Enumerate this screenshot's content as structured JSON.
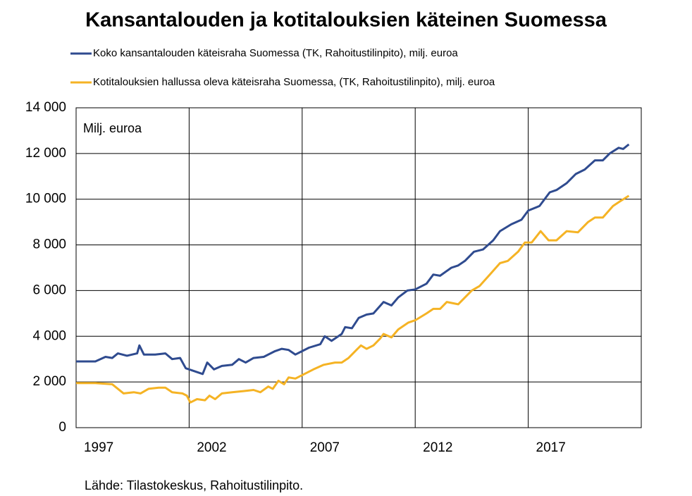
{
  "chart_data": {
    "type": "line",
    "title": "Kansantalouden ja kotitalouksien käteinen Suomessa",
    "annotation": "Milj. euroa",
    "source": "Lähde: Tilastokeskus, Rahoitustilinpito.",
    "xlim": [
      1996,
      2021
    ],
    "xticks": [
      1997,
      2002,
      2007,
      2012,
      2017
    ],
    "xgrid": [
      2001,
      2006,
      2011,
      2016
    ],
    "ylim": [
      0,
      14000
    ],
    "yticks": [
      0,
      {
        "value": 2000,
        "label": "2 000"
      },
      {
        "value": 4000,
        "label": "4 000"
      },
      {
        "value": 6000,
        "label": "6 000"
      },
      {
        "value": 8000,
        "label": "8 000"
      },
      {
        "value": 10000,
        "label": "10 000"
      },
      {
        "value": 12000,
        "label": "12 000"
      },
      {
        "value": 14000,
        "label": "14 000"
      }
    ],
    "grid": true,
    "series": [
      {
        "name": "Koko kansantalouden käteisraha Suomessa (TK, Rahoitustilinpito), milj. euroa",
        "color": "#2f4b8f",
        "x": [
          1996.0,
          1996.85,
          1997.3,
          1997.6,
          1997.85,
          1998.25,
          1998.7,
          1998.8,
          1999.0,
          1999.5,
          1999.95,
          2000.25,
          2000.6,
          2000.85,
          2001.0,
          2001.6,
          2001.8,
          2002.1,
          2002.45,
          2002.9,
          2003.2,
          2003.5,
          2003.85,
          2004.3,
          2004.8,
          2005.1,
          2005.4,
          2005.7,
          2006.0,
          2006.3,
          2006.8,
          2007.0,
          2007.3,
          2007.75,
          2007.9,
          2008.2,
          2008.5,
          2008.85,
          2009.15,
          2009.6,
          2009.95,
          2010.25,
          2010.65,
          2011.0,
          2011.5,
          2011.8,
          2012.1,
          2012.6,
          2012.9,
          2013.2,
          2013.6,
          2014.0,
          2014.45,
          2014.75,
          2015.25,
          2015.7,
          2016.0,
          2016.5,
          2016.95,
          2017.25,
          2017.7,
          2018.1,
          2018.5,
          2018.95,
          2019.3,
          2019.6,
          2020.0,
          2020.2,
          2020.45
        ],
        "values": [
          2900,
          2900,
          3100,
          3050,
          3250,
          3150,
          3250,
          3600,
          3200,
          3200,
          3250,
          3000,
          3050,
          2600,
          2550,
          2350,
          2850,
          2550,
          2700,
          2750,
          3000,
          2850,
          3050,
          3100,
          3350,
          3450,
          3400,
          3200,
          3350,
          3500,
          3650,
          4000,
          3800,
          4100,
          4400,
          4350,
          4800,
          4950,
          5000,
          5500,
          5350,
          5700,
          6000,
          6050,
          6300,
          6700,
          6650,
          7000,
          7100,
          7300,
          7700,
          7800,
          8200,
          8600,
          8900,
          9100,
          9500,
          9700,
          10300,
          10400,
          10700,
          11100,
          11300,
          11700,
          11700,
          12000,
          12250,
          12200,
          12400
        ]
      },
      {
        "name": "Kotitalouksien hallussa oleva käteisraha Suomessa, (TK, Rahoitustilinpito), milj. euroa",
        "color": "#f5b324",
        "x": [
          1996.0,
          1996.85,
          1997.6,
          1998.1,
          1998.55,
          1998.85,
          1999.2,
          1999.65,
          1999.95,
          2000.25,
          2000.7,
          2000.9,
          2001.05,
          2001.35,
          2001.7,
          2001.9,
          2002.15,
          2002.45,
          2002.9,
          2003.4,
          2003.85,
          2004.15,
          2004.5,
          2004.7,
          2004.95,
          2005.2,
          2005.4,
          2005.7,
          2006.0,
          2006.5,
          2006.95,
          2007.45,
          2007.75,
          2008.05,
          2008.4,
          2008.6,
          2008.85,
          2009.15,
          2009.45,
          2009.6,
          2009.95,
          2010.25,
          2010.7,
          2011.0,
          2011.5,
          2011.8,
          2012.1,
          2012.4,
          2012.9,
          2013.2,
          2013.5,
          2013.85,
          2014.3,
          2014.75,
          2015.1,
          2015.55,
          2015.85,
          2016.15,
          2016.55,
          2016.9,
          2017.25,
          2017.7,
          2018.2,
          2018.65,
          2018.95,
          2019.3,
          2019.75,
          2020.05,
          2020.45
        ],
        "values": [
          1950,
          1950,
          1900,
          1500,
          1550,
          1500,
          1700,
          1750,
          1750,
          1550,
          1500,
          1400,
          1100,
          1250,
          1200,
          1400,
          1250,
          1500,
          1550,
          1600,
          1650,
          1550,
          1800,
          1700,
          2050,
          1900,
          2200,
          2150,
          2300,
          2550,
          2750,
          2850,
          2850,
          3050,
          3400,
          3600,
          3450,
          3600,
          3900,
          4100,
          3950,
          4300,
          4600,
          4700,
          5000,
          5200,
          5200,
          5500,
          5400,
          5700,
          6000,
          6200,
          6700,
          7200,
          7300,
          7700,
          8100,
          8100,
          8600,
          8200,
          8200,
          8600,
          8550,
          9000,
          9200,
          9200,
          9700,
          9900,
          10150
        ]
      }
    ]
  }
}
